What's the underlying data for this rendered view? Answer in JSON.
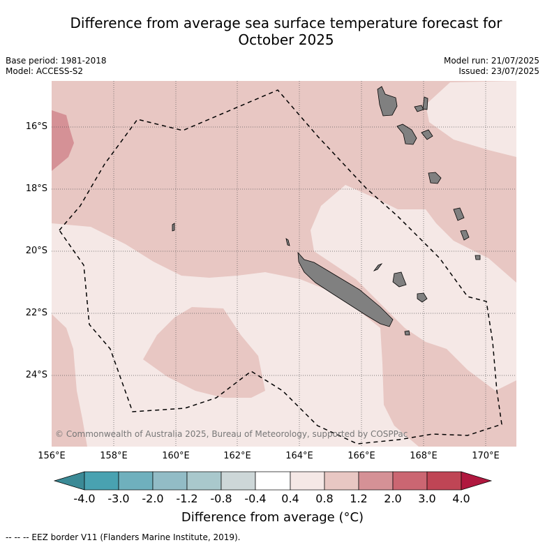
{
  "title": {
    "line1": "Difference from average sea surface temperature forecast for",
    "line2": "October 2025"
  },
  "meta": {
    "base_period": "Base period: 1981-2018",
    "model": "Model: ACCESS-S2",
    "model_run": "Model run: 21/07/2025",
    "issued": "Issued: 23/07/2025"
  },
  "map": {
    "copyright": "© Commonwealth of Australia 2025, Bureau of Meteorology, supported by COSPPac",
    "lat_labels": [
      "16°S",
      "18°S",
      "20°S",
      "22°S",
      "24°S"
    ],
    "lon_labels": [
      "156°E",
      "158°E",
      "160°E",
      "162°E",
      "164°E",
      "166°E",
      "168°E",
      "170°E"
    ],
    "colors": {
      "class_0.4_0.8": "#f5e8e6",
      "class_0.8_1.2": "#e8c7c3",
      "class_1.2_2.0": "#d59196",
      "land": "#808080",
      "eez_line": "#000000"
    }
  },
  "colorbar": {
    "labels": [
      "-4.0",
      "-3.0",
      "-2.0",
      "-1.2",
      "-0.8",
      "-0.4",
      "0.4",
      "0.8",
      "1.2",
      "2.0",
      "3.0",
      "4.0"
    ],
    "colors": [
      "#3b8a96",
      "#49a2b1",
      "#6fb0bd",
      "#92bcc6",
      "#a9c8cc",
      "#cdd7d8",
      "#ffffff",
      "#f5e8e6",
      "#e8c7c3",
      "#d59196",
      "#cb6672",
      "#bf4555",
      "#b0183f"
    ],
    "title": "Difference from average (°C)"
  },
  "legend": {
    "eez": "--  --  -- EEZ border V11 (Flanders Marine Institute, 2019)."
  }
}
